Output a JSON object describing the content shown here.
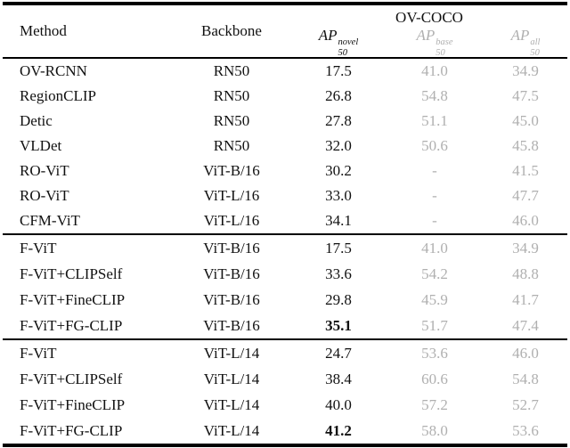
{
  "colors": {
    "text": "#111111",
    "muted": "#b0b0b0",
    "rule": "#000000",
    "background": "#ffffff"
  },
  "header": {
    "method": "Method",
    "backbone": "Backbone",
    "group": "OV-COCO",
    "metrics": [
      {
        "name": "AP",
        "sub": "50",
        "sup": "novel",
        "muted": false
      },
      {
        "name": "AP",
        "sub": "50",
        "sup": "base",
        "muted": true
      },
      {
        "name": "AP",
        "sub": "50",
        "sup": "all",
        "muted": true
      }
    ]
  },
  "sections": [
    {
      "rows": [
        {
          "method": "OV-RCNN",
          "backbone": "RN50",
          "novel": "17.5",
          "novel_bold": false,
          "base": "41.0",
          "all": "34.9"
        },
        {
          "method": "RegionCLIP",
          "backbone": "RN50",
          "novel": "26.8",
          "novel_bold": false,
          "base": "54.8",
          "all": "47.5"
        },
        {
          "method": "Detic",
          "backbone": "RN50",
          "novel": "27.8",
          "novel_bold": false,
          "base": "51.1",
          "all": "45.0"
        },
        {
          "method": "VLDet",
          "backbone": "RN50",
          "novel": "32.0",
          "novel_bold": false,
          "base": "50.6",
          "all": "45.8"
        },
        {
          "method": "RO-ViT",
          "backbone": "ViT-B/16",
          "novel": "30.2",
          "novel_bold": false,
          "base": "-",
          "all": "41.5"
        },
        {
          "method": "RO-ViT",
          "backbone": "ViT-L/16",
          "novel": "33.0",
          "novel_bold": false,
          "base": "-",
          "all": "47.7"
        },
        {
          "method": "CFM-ViT",
          "backbone": "ViT-L/16",
          "novel": "34.1",
          "novel_bold": false,
          "base": "-",
          "all": "46.0"
        }
      ]
    },
    {
      "rows": [
        {
          "method": "F-ViT",
          "backbone": "ViT-B/16",
          "novel": "17.5",
          "novel_bold": false,
          "base": "41.0",
          "all": "34.9"
        },
        {
          "method": "F-ViT+CLIPSelf",
          "backbone": "ViT-B/16",
          "novel": "33.6",
          "novel_bold": false,
          "base": "54.2",
          "all": "48.8"
        },
        {
          "method": "F-ViT+FineCLIP",
          "backbone": "ViT-B/16",
          "novel": "29.8",
          "novel_bold": false,
          "base": "45.9",
          "all": "41.7"
        },
        {
          "method": "F-ViT+FG-CLIP",
          "backbone": "ViT-B/16",
          "novel": "35.1",
          "novel_bold": true,
          "base": "51.7",
          "all": "47.4"
        }
      ]
    },
    {
      "rows": [
        {
          "method": "F-ViT",
          "backbone": "ViT-L/14",
          "novel": "24.7",
          "novel_bold": false,
          "base": "53.6",
          "all": "46.0"
        },
        {
          "method": "F-ViT+CLIPSelf",
          "backbone": "ViT-L/14",
          "novel": "38.4",
          "novel_bold": false,
          "base": "60.6",
          "all": "54.8"
        },
        {
          "method": "F-ViT+FineCLIP",
          "backbone": "ViT-L/14",
          "novel": "40.0",
          "novel_bold": false,
          "base": "57.2",
          "all": "52.7"
        },
        {
          "method": "F-ViT+FG-CLIP",
          "backbone": "ViT-L/14",
          "novel": "41.2",
          "novel_bold": true,
          "base": "58.0",
          "all": "53.6"
        }
      ]
    }
  ]
}
